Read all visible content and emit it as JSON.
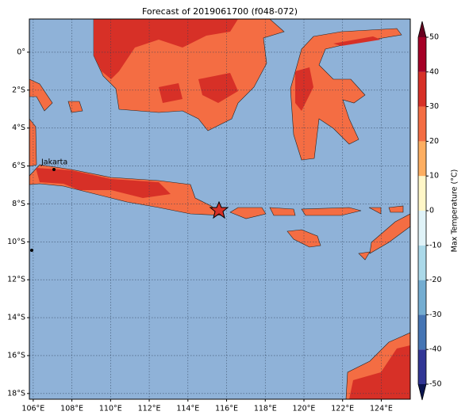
{
  "map": {
    "title": "Forecast of 2019061700 (f048-072)",
    "xlim": [
      105.8,
      125.5
    ],
    "ylim": [
      -18.3,
      1.75
    ],
    "lon_ticks": [
      {
        "value": 106,
        "label": "106°E"
      },
      {
        "value": 108,
        "label": "108°E"
      },
      {
        "value": 110,
        "label": "110°E"
      },
      {
        "value": 112,
        "label": "112°E"
      },
      {
        "value": 114,
        "label": "114°E"
      },
      {
        "value": 116,
        "label": "116°E"
      },
      {
        "value": 118,
        "label": "118°E"
      },
      {
        "value": 120,
        "label": "120°E"
      },
      {
        "value": 122,
        "label": "122°E"
      },
      {
        "value": 124,
        "label": "124°E"
      }
    ],
    "lat_ticks": [
      {
        "value": 0,
        "label": "0°"
      },
      {
        "value": -2,
        "label": "2°S"
      },
      {
        "value": -4,
        "label": "4°S"
      },
      {
        "value": -6,
        "label": "6°S"
      },
      {
        "value": -8,
        "label": "8°S"
      },
      {
        "value": -10,
        "label": "10°S"
      },
      {
        "value": -12,
        "label": "12°S"
      },
      {
        "value": -14,
        "label": "14°S"
      },
      {
        "value": -16,
        "label": "16°S"
      },
      {
        "value": -18,
        "label": "18°S"
      }
    ],
    "place": "Jakarta",
    "colorbar": {
      "label": "Max Temperature (°C)",
      "ticks": [
        -50,
        -40,
        -30,
        -20,
        -10,
        0,
        10,
        20,
        30,
        40,
        50
      ],
      "colors": [
        "#313695",
        "#4575b4",
        "#74add1",
        "#abd9e9",
        "#e0f3f8",
        "#fff7c8",
        "#fdae61",
        "#f46d43",
        "#d73027",
        "#a50026"
      ],
      "under_color": "#0b1550",
      "over_color": "#67001f"
    }
  }
}
